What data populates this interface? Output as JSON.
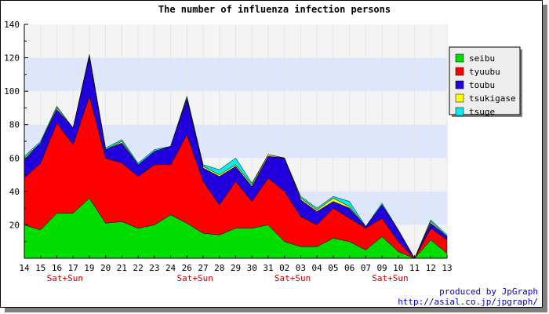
{
  "chart_data": {
    "type": "area",
    "stacked": true,
    "title": "The number of influenza infection persons",
    "xlabel": "",
    "ylabel": "",
    "ylim": [
      0,
      140
    ],
    "yticks": [
      20,
      40,
      60,
      80,
      100,
      120,
      140
    ],
    "categories": [
      "14",
      "15",
      "16",
      "17",
      "19",
      "20",
      "21",
      "22",
      "23",
      "24",
      "26",
      "27",
      "28",
      "29",
      "30",
      "31",
      "02",
      "03",
      "04",
      "05",
      "06",
      "07",
      "09",
      "10",
      "11",
      "12",
      "13"
    ],
    "weekend_labels": [
      {
        "after_index": 2,
        "text": "Sat+Sun"
      },
      {
        "after_index": 10,
        "text": "Sat+Sun"
      },
      {
        "after_index": 16,
        "text": "Sat+Sun"
      },
      {
        "after_index": 22,
        "text": "Sat+Sun"
      }
    ],
    "series": [
      {
        "name": "seibu",
        "color": "#00dd00",
        "values": [
          20,
          17,
          27,
          27,
          36,
          21,
          22,
          18,
          20,
          26,
          21,
          15,
          14,
          18,
          18,
          20,
          10,
          7,
          7,
          12,
          10,
          5,
          13,
          4,
          0,
          11,
          3
        ]
      },
      {
        "name": "tyuubu",
        "color": "#ff0000",
        "values": [
          28,
          40,
          54,
          41,
          61,
          39,
          35,
          31,
          36,
          30,
          53,
          31,
          18,
          28,
          16,
          28,
          30,
          18,
          13,
          18,
          14,
          13,
          11,
          6,
          0,
          7,
          8
        ]
      },
      {
        "name": "toubu",
        "color": "#2200dd",
        "values": [
          11,
          12,
          8,
          10,
          23,
          5,
          12,
          7,
          8,
          11,
          21,
          8,
          17,
          9,
          9,
          13,
          20,
          10,
          8,
          4,
          6,
          1,
          8,
          7,
          0,
          3,
          2
        ]
      },
      {
        "name": "tsukigase",
        "color": "#ffff00",
        "values": [
          1,
          0,
          1,
          0,
          1,
          0,
          1,
          0,
          0,
          0,
          1,
          1,
          1,
          1,
          1,
          1,
          0,
          1,
          1,
          2,
          1,
          0,
          0,
          0,
          0,
          1,
          0
        ]
      },
      {
        "name": "tsuge",
        "color": "#00eeee",
        "values": [
          1,
          1,
          1,
          0,
          1,
          1,
          1,
          1,
          1,
          0,
          1,
          1,
          3,
          4,
          1,
          0,
          0,
          1,
          1,
          1,
          3,
          0,
          1,
          0,
          0,
          1,
          1
        ]
      }
    ],
    "grid": true,
    "legend_position": "right"
  },
  "credits": {
    "line1": "produced by JpGraph",
    "line2": "http://asial.co.jp/jpgraph/"
  }
}
